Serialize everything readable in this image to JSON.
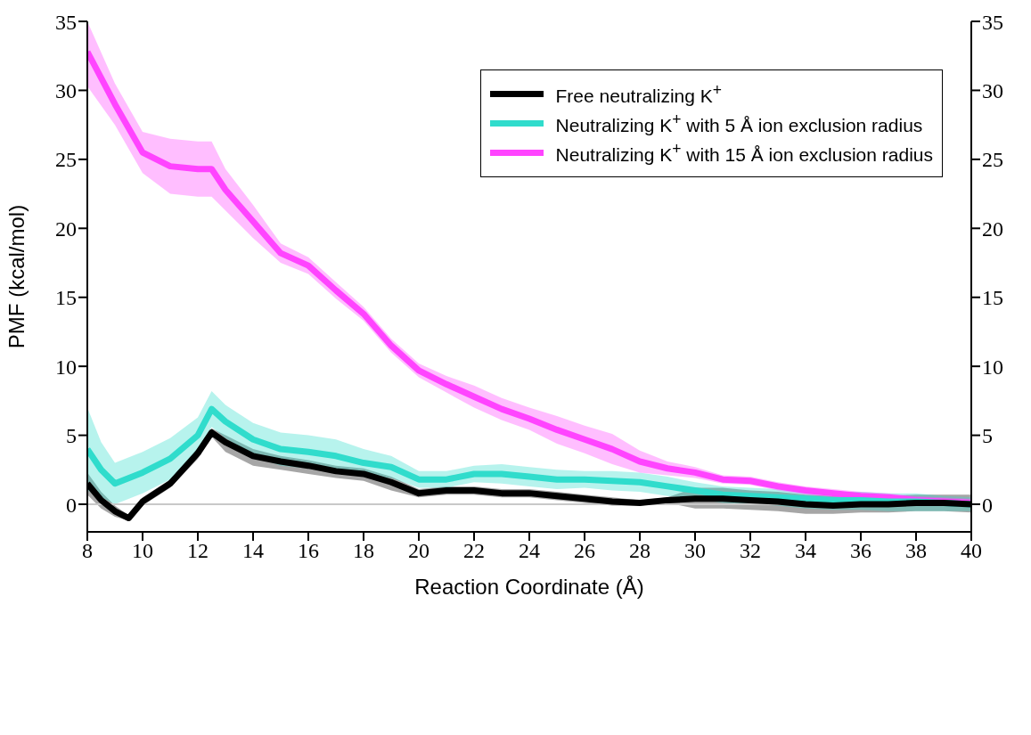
{
  "chart_data": {
    "type": "line",
    "xlabel": "Reaction Coordinate (Å)",
    "ylabel": "PMF (kcal/mol)",
    "xlim": [
      8,
      40
    ],
    "xticks": [
      8,
      10,
      12,
      14,
      16,
      18,
      20,
      22,
      24,
      26,
      28,
      30,
      32,
      34,
      36,
      38,
      40
    ],
    "ylim": [
      -2,
      35
    ],
    "yticks": [
      0,
      5,
      10,
      15,
      20,
      25,
      30,
      35
    ],
    "y2lim": [
      -2,
      35
    ],
    "y2ticks": [
      0,
      5,
      10,
      15,
      20,
      25,
      30,
      35
    ],
    "legend": "top right",
    "marker": "none",
    "line_style": "solid",
    "ref_lines": [
      {
        "axis": "y",
        "value": 0,
        "color": "#c8c8c8"
      }
    ],
    "series": [
      {
        "name": "Free neutralizing K$^{+}$",
        "color": "#000000",
        "x": [
          8,
          8.5,
          9,
          9.5,
          10,
          11,
          12,
          12.5,
          13,
          14,
          15,
          16,
          17,
          18,
          19,
          20,
          21,
          22,
          23,
          24,
          25,
          26,
          27,
          28,
          29,
          30,
          31,
          32,
          33,
          34,
          35,
          36,
          37,
          38,
          39,
          40
        ],
        "values": [
          1.5,
          0.3,
          -0.5,
          -1.0,
          0.2,
          1.5,
          3.7,
          5.2,
          4.5,
          3.5,
          3.1,
          2.8,
          2.4,
          2.2,
          1.6,
          0.8,
          1.0,
          1.0,
          0.8,
          0.8,
          0.6,
          0.4,
          0.2,
          0.1,
          0.3,
          0.4,
          0.4,
          0.3,
          0.2,
          0.0,
          -0.1,
          0.0,
          0.0,
          0.1,
          0.1,
          0.0
        ],
        "lower": [
          0.7,
          -0.3,
          -0.9,
          -1.2,
          -0.1,
          1.2,
          3.3,
          4.9,
          3.8,
          2.8,
          2.5,
          2.2,
          1.9,
          1.7,
          1.0,
          0.5,
          0.7,
          0.7,
          0.5,
          0.5,
          0.3,
          0.1,
          -0.1,
          -0.1,
          0.1,
          -0.3,
          -0.3,
          -0.4,
          -0.5,
          -0.7,
          -0.7,
          -0.6,
          -0.6,
          -0.5,
          -0.5,
          -0.6
        ],
        "upper": [
          2.3,
          0.9,
          -0.1,
          -0.8,
          0.5,
          1.8,
          4.1,
          5.5,
          5.0,
          4.0,
          3.5,
          3.2,
          2.8,
          2.6,
          2.0,
          1.1,
          1.3,
          1.3,
          1.1,
          1.1,
          0.9,
          0.7,
          0.5,
          0.3,
          0.5,
          1.2,
          1.2,
          1.0,
          0.9,
          0.7,
          0.6,
          0.6,
          0.6,
          0.7,
          0.7,
          0.7
        ]
      },
      {
        "name": "Neutralizing K$^{+}$ with 5 Å ion exclusion radius",
        "color": "#30dccc",
        "x": [
          8,
          8.5,
          9,
          10,
          11,
          12,
          12.5,
          13,
          14,
          15,
          16,
          17,
          18,
          19,
          20,
          21,
          22,
          23,
          24,
          25,
          26,
          27,
          28,
          29,
          30,
          31,
          32,
          33,
          34,
          35,
          36,
          37,
          38,
          39,
          40
        ],
        "values": [
          4.0,
          2.5,
          1.5,
          2.3,
          3.3,
          5.0,
          6.9,
          6.0,
          4.7,
          4.0,
          3.8,
          3.5,
          3.0,
          2.7,
          1.8,
          1.8,
          2.2,
          2.2,
          2.0,
          1.8,
          1.8,
          1.7,
          1.6,
          1.3,
          1.0,
          0.7,
          0.6,
          0.5,
          0.4,
          0.3,
          0.3,
          0.2,
          0.2,
          0.1,
          0.0
        ],
        "lower": [
          1.0,
          0.5,
          0.0,
          0.8,
          1.8,
          3.7,
          5.6,
          4.8,
          3.5,
          2.8,
          2.6,
          2.3,
          2.0,
          1.9,
          1.2,
          1.2,
          1.6,
          1.5,
          1.3,
          1.1,
          1.2,
          1.0,
          0.9,
          0.6,
          0.4,
          0.1,
          0.0,
          -0.1,
          -0.3,
          -0.4,
          -0.4,
          -0.5,
          -0.5,
          -0.5,
          -0.5
        ],
        "upper": [
          7.0,
          4.5,
          3.0,
          3.8,
          4.8,
          6.3,
          8.2,
          7.2,
          5.9,
          5.2,
          5.0,
          4.7,
          4.0,
          3.5,
          2.4,
          2.4,
          2.8,
          2.9,
          2.7,
          2.5,
          2.4,
          2.4,
          2.3,
          2.0,
          1.6,
          1.3,
          1.2,
          1.1,
          1.0,
          0.9,
          0.9,
          0.8,
          0.8,
          0.6,
          0.5
        ]
      },
      {
        "name": "Neutralizing K$^{+}$ with 15 Å ion exclusion radius",
        "color": "#ff44ff",
        "x": [
          8,
          9,
          10,
          11,
          12,
          12.5,
          13,
          14,
          15,
          16,
          17,
          18,
          19,
          20,
          21,
          22,
          23,
          24,
          25,
          26,
          27,
          28,
          29,
          30,
          31,
          32,
          33,
          34,
          35,
          36,
          37,
          38,
          39,
          40
        ],
        "values": [
          32.8,
          29.0,
          25.5,
          24.5,
          24.3,
          24.3,
          22.8,
          20.5,
          18.2,
          17.3,
          15.5,
          13.8,
          11.5,
          9.7,
          8.7,
          7.8,
          6.9,
          6.2,
          5.4,
          4.7,
          4.0,
          3.1,
          2.6,
          2.3,
          1.8,
          1.7,
          1.3,
          1.0,
          0.8,
          0.6,
          0.5,
          0.3,
          0.2,
          0.1
        ],
        "lower": [
          30.3,
          27.5,
          24.0,
          22.5,
          22.3,
          22.3,
          21.3,
          19.3,
          17.5,
          16.7,
          14.9,
          13.3,
          11.0,
          9.2,
          8.1,
          7.0,
          6.1,
          5.4,
          4.4,
          3.7,
          2.9,
          2.3,
          2.1,
          1.9,
          1.5,
          1.4,
          1.0,
          0.7,
          0.5,
          0.3,
          0.2,
          0.0,
          -0.1,
          -0.2
        ],
        "upper": [
          35.0,
          30.5,
          27.0,
          26.5,
          26.3,
          26.3,
          24.3,
          21.7,
          18.9,
          17.9,
          16.1,
          14.3,
          12.0,
          10.2,
          9.3,
          8.6,
          7.7,
          7.0,
          6.4,
          5.7,
          5.1,
          3.9,
          3.1,
          2.7,
          2.1,
          2.0,
          1.6,
          1.3,
          1.1,
          0.9,
          0.8,
          0.6,
          0.5,
          0.4
        ]
      }
    ]
  }
}
